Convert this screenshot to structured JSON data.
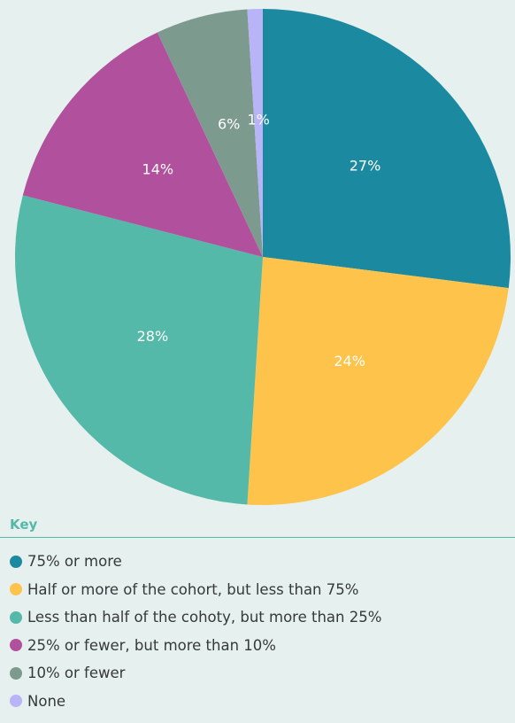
{
  "chart_data": {
    "type": "pie",
    "categories": [
      "75% or more",
      "Half or more of the cohort, but less than 75%",
      "Less than half of the cohoty, but more than 25%",
      "25% or fewer, but more than 10%",
      "10% or fewer",
      "None"
    ],
    "values": [
      27,
      24,
      28,
      14,
      6,
      1
    ],
    "data_labels": [
      "27%",
      "24%",
      "28%",
      "14%",
      "6%",
      "1%"
    ],
    "colors": [
      "#1b8aa1",
      "#fec34a",
      "#54b9a8",
      "#b1519e",
      "#7d9a8f",
      "#b9b4f7"
    ],
    "legend_title": "Key",
    "legend_position": "bottom"
  }
}
